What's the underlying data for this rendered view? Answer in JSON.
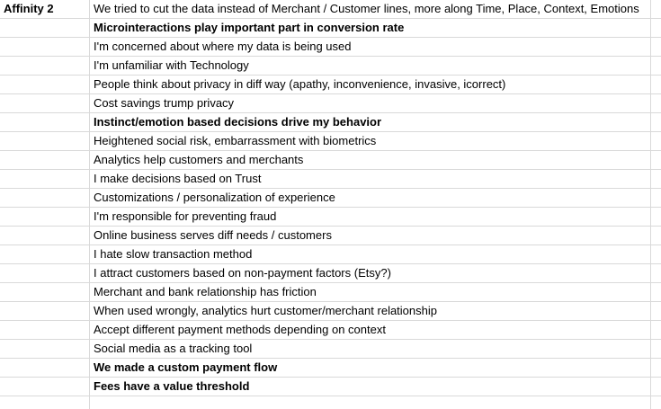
{
  "sheet": {
    "rows": [
      {
        "a": "Affinity 2",
        "a_bold": true,
        "b": "We tried to cut the data instead of Merchant / Customer lines, more along Time, Place, Context, Emotions",
        "b_bold": false
      },
      {
        "a": "",
        "a_bold": false,
        "b": "Microinteractions play important part in conversion rate",
        "b_bold": true
      },
      {
        "a": "",
        "a_bold": false,
        "b": "I'm concerned about where my data is being used",
        "b_bold": false
      },
      {
        "a": "",
        "a_bold": false,
        "b": "I'm unfamiliar with Technology",
        "b_bold": false
      },
      {
        "a": "",
        "a_bold": false,
        "b": "People think about privacy in diff way (apathy, inconvenience, invasive, icorrect)",
        "b_bold": false
      },
      {
        "a": "",
        "a_bold": false,
        "b": "Cost savings trump privacy",
        "b_bold": false
      },
      {
        "a": "",
        "a_bold": false,
        "b": "Instinct/emotion based decisions drive my behavior",
        "b_bold": true
      },
      {
        "a": "",
        "a_bold": false,
        "b": "Heightened social risk, embarrassment with biometrics",
        "b_bold": false
      },
      {
        "a": "",
        "a_bold": false,
        "b": "Analytics help customers and merchants",
        "b_bold": false
      },
      {
        "a": "",
        "a_bold": false,
        "b": "I make decisions based on Trust",
        "b_bold": false
      },
      {
        "a": "",
        "a_bold": false,
        "b": "Customizations / personalization of experience",
        "b_bold": false
      },
      {
        "a": "",
        "a_bold": false,
        "b": "I'm responsible for preventing fraud",
        "b_bold": false
      },
      {
        "a": "",
        "a_bold": false,
        "b": "Online business serves diff needs / customers",
        "b_bold": false
      },
      {
        "a": "",
        "a_bold": false,
        "b": "I hate slow transaction method",
        "b_bold": false
      },
      {
        "a": "",
        "a_bold": false,
        "b": "I attract customers based on non-payment factors (Etsy?)",
        "b_bold": false
      },
      {
        "a": "",
        "a_bold": false,
        "b": "Merchant and bank relationship has friction",
        "b_bold": false
      },
      {
        "a": "",
        "a_bold": false,
        "b": "When used wrongly, analytics hurt customer/merchant relationship",
        "b_bold": false
      },
      {
        "a": "",
        "a_bold": false,
        "b": "Accept different payment methods depending on context",
        "b_bold": false
      },
      {
        "a": "",
        "a_bold": false,
        "b": "Social media as a tracking tool",
        "b_bold": false
      },
      {
        "a": "",
        "a_bold": false,
        "b": "We made a custom payment flow",
        "b_bold": true
      },
      {
        "a": "",
        "a_bold": false,
        "b": "Fees have a value threshold",
        "b_bold": true
      },
      {
        "a": "",
        "a_bold": false,
        "b": "",
        "b_bold": false
      }
    ]
  }
}
